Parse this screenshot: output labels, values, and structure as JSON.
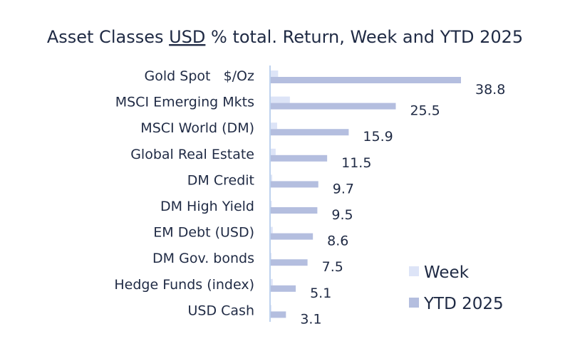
{
  "chart_data": {
    "type": "bar",
    "orientation": "horizontal",
    "title_parts": [
      "Asset Classes ",
      "USD",
      " % total. Return, Week and YTD 2025"
    ],
    "categories": [
      "Gold Spot   $/Oz",
      "MSCI Emerging Mkts",
      "MSCI World (DM)",
      "Global Real Estate",
      "DM Credit",
      "DM High Yield",
      "EM Debt (USD)",
      "DM Gov. bonds",
      "Hedge Funds (index)",
      "USD Cash"
    ],
    "series": [
      {
        "name": "Week",
        "color": "#dde4f7",
        "values": [
          1.5,
          3.9,
          1.3,
          1.0,
          0.3,
          0.2,
          0.4,
          0.1,
          0.4,
          0.1
        ]
      },
      {
        "name": "YTD 2025",
        "color": "#b4bedf",
        "values": [
          38.8,
          25.5,
          15.9,
          11.5,
          9.7,
          9.5,
          8.6,
          7.5,
          5.1,
          3.1
        ],
        "labels": [
          "38.8",
          "25.5",
          "15.9",
          "11.5",
          "9.7",
          "9.5",
          "8.6",
          "7.5",
          "5.1",
          "3.1"
        ]
      }
    ],
    "xlim": [
      0,
      40
    ],
    "legend": "bottom-right",
    "grid": false,
    "axis_color": "#a9c4e8"
  }
}
